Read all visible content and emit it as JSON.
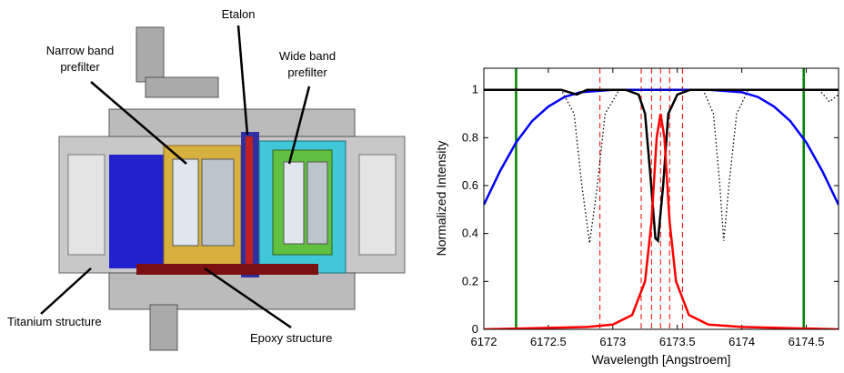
{
  "diagram": {
    "labels": [
      {
        "lines": [
          "Etalon"
        ]
      },
      {
        "lines": [
          "Narrow band",
          "prefilter"
        ]
      },
      {
        "lines": [
          "Wide band",
          "prefilter"
        ]
      },
      {
        "lines": [
          "Titanium structure"
        ]
      },
      {
        "lines": [
          "Epoxy structure"
        ]
      }
    ]
  },
  "chart_data": {
    "type": "line",
    "xlabel": "Wavelength [Angstroem]",
    "ylabel": "Normalized Intensity",
    "xlim": [
      6172,
      6174.75
    ],
    "ylim": [
      0,
      1.09
    ],
    "xticks": [
      6172,
      6172.5,
      6173,
      6173.5,
      6174,
      6174.5
    ],
    "yticks": [
      0,
      0.2,
      0.4,
      0.6,
      0.8,
      1
    ],
    "series": [
      {
        "color": "#0000ff",
        "style": "solid",
        "x": [
          6172,
          6172.125,
          6172.25,
          6172.375,
          6172.5,
          6172.625,
          6172.75,
          6173,
          6173.37,
          6173.75,
          6174,
          6174.125,
          6174.25,
          6174.375,
          6174.5,
          6174.625,
          6174.75
        ],
        "values": [
          0.52,
          0.66,
          0.78,
          0.87,
          0.93,
          0.97,
          0.99,
          1.0,
          1.0,
          1.0,
          0.99,
          0.97,
          0.93,
          0.87,
          0.78,
          0.66,
          0.52
        ]
      },
      {
        "color": "#000000",
        "style": "dotted",
        "x": [
          6172,
          6172.6,
          6172.7,
          6172.76,
          6172.82,
          6172.88,
          6172.94,
          6173.05,
          6173.7,
          6173.78,
          6173.83,
          6173.86,
          6173.9,
          6173.96,
          6174.05,
          6174.6,
          6174.68,
          6174.75
        ],
        "values": [
          1,
          1,
          0.9,
          0.6,
          0.36,
          0.6,
          0.9,
          1,
          1,
          0.9,
          0.6,
          0.37,
          0.6,
          0.9,
          1,
          1,
          0.95,
          0.98
        ]
      },
      {
        "color": "#000000",
        "style": "solid",
        "x": [
          6172,
          6172.6,
          6172.72,
          6172.8,
          6173.1,
          6173.2,
          6173.25,
          6173.29,
          6173.33,
          6173.35,
          6173.39,
          6173.43,
          6173.5,
          6173.6,
          6174.75
        ],
        "values": [
          1.0,
          1.0,
          0.98,
          1.0,
          1.0,
          0.98,
          0.9,
          0.65,
          0.38,
          0.37,
          0.6,
          0.9,
          0.98,
          1.0,
          1.0
        ]
      },
      {
        "color": "#ff0000",
        "style": "solid",
        "x": [
          6172,
          6172.8,
          6173,
          6173.15,
          6173.25,
          6173.3,
          6173.34,
          6173.37,
          6173.4,
          6173.44,
          6173.49,
          6173.59,
          6173.74,
          6174,
          6174.75
        ],
        "values": [
          0,
          0.01,
          0.02,
          0.06,
          0.2,
          0.45,
          0.8,
          0.9,
          0.8,
          0.45,
          0.2,
          0.06,
          0.02,
          0.01,
          0
        ]
      }
    ],
    "vlines": [
      {
        "x": 6172.25,
        "color": "#008000",
        "style": "solid"
      },
      {
        "x": 6174.48,
        "color": "#008000",
        "style": "solid"
      },
      {
        "x": 6172.9,
        "color": "#ff0000",
        "style": "dashed"
      },
      {
        "x": 6173.22,
        "color": "#ff0000",
        "style": "dashed"
      },
      {
        "x": 6173.3,
        "color": "#ff0000",
        "style": "dashed"
      },
      {
        "x": 6173.37,
        "color": "#ff0000",
        "style": "dashed"
      },
      {
        "x": 6173.44,
        "color": "#ff0000",
        "style": "dashed"
      },
      {
        "x": 6173.54,
        "color": "#ff0000",
        "style": "dashed"
      }
    ]
  }
}
